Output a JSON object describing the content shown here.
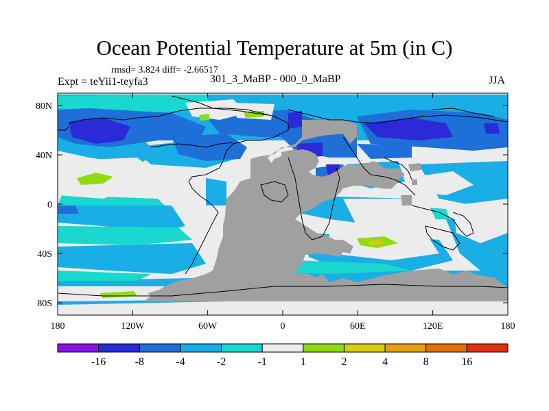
{
  "title": "Ocean Potential Temperature at 5m (in C)",
  "stats": "rmsd= 3.824 diff= -2.66517",
  "subtitle": "301_3_MaBP - 000_0_MaBP",
  "expt": "Expt = teYii1-teyfa3",
  "season": "JJA",
  "axes": {
    "x_ticks": [
      "180",
      "120W",
      "60W",
      "0",
      "60E",
      "120E",
      "180"
    ],
    "y_ticks": [
      "80N",
      "40N",
      "0",
      "40S",
      "80S"
    ]
  },
  "legend": {
    "labels": [
      "-16",
      "-8",
      "-4",
      "-2",
      "-1",
      "1",
      "2",
      "4",
      "8",
      "16"
    ],
    "colors": [
      "#8a10e6",
      "#2a2ad8",
      "#1e6fd8",
      "#1aaee6",
      "#18d8d0",
      "#ececec",
      "#8edc10",
      "#d6cc10",
      "#e6a010",
      "#e2700e",
      "#e03010"
    ]
  },
  "colors": {
    "land": "#a0a0a0",
    "background": "#ececec"
  },
  "chart_data": {
    "type": "heatmap",
    "variable": "Ocean Potential Temperature at 5m (in C)",
    "difference": "301_3_MaBP - 000_0_MaBP",
    "lon_range": [
      -180,
      180
    ],
    "lat_range": [
      -90,
      90
    ],
    "contour_levels": [
      -16,
      -8,
      -4,
      -2,
      -1,
      1,
      2,
      4,
      8,
      16
    ],
    "rmsd": 3.824,
    "diff": -2.66517
  }
}
